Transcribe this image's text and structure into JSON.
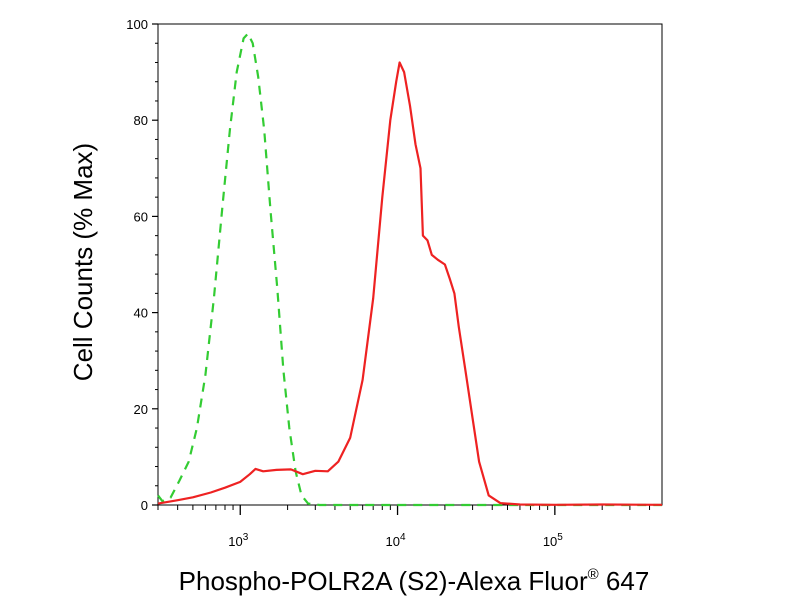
{
  "chart_data": {
    "type": "line",
    "title": "",
    "xlabel": {
      "main": "Phospho-POLR2A (S2)-Alexa Fluor",
      "superscript": "®",
      "suffix": " 647"
    },
    "ylabel": "Cell Counts (% Max)",
    "x_scale": "log",
    "xlim": [
      300,
      480000
    ],
    "ylim": [
      0,
      100
    ],
    "y_ticks": [
      0,
      20,
      40,
      60,
      80,
      100
    ],
    "x_major_ticks": [
      {
        "value": 1000,
        "base": "10",
        "exponent": "3"
      },
      {
        "value": 10000,
        "base": "10",
        "exponent": "4"
      },
      {
        "value": 100000,
        "base": "10",
        "exponent": "5"
      }
    ],
    "grid": false,
    "legend": "none",
    "series": [
      {
        "style": "dashed",
        "color": "#33cc33",
        "points": [
          [
            300,
            2
          ],
          [
            320,
            0.8
          ],
          [
            360,
            1.5
          ],
          [
            410,
            5
          ],
          [
            470,
            9
          ],
          [
            530,
            16
          ],
          [
            600,
            27
          ],
          [
            680,
            43
          ],
          [
            770,
            62
          ],
          [
            860,
            78
          ],
          [
            950,
            90
          ],
          [
            1050,
            97
          ],
          [
            1120,
            98
          ],
          [
            1200,
            96
          ],
          [
            1300,
            89
          ],
          [
            1420,
            78
          ],
          [
            1560,
            61
          ],
          [
            1720,
            45
          ],
          [
            1880,
            28
          ],
          [
            2050,
            16
          ],
          [
            2250,
            7
          ],
          [
            2450,
            2
          ],
          [
            2700,
            0.3
          ],
          [
            3200,
            0
          ],
          [
            480000,
            0
          ]
        ]
      },
      {
        "style": "solid",
        "color": "#ee2222",
        "points": [
          [
            300,
            0.3
          ],
          [
            400,
            1
          ],
          [
            500,
            1.6
          ],
          [
            650,
            2.6
          ],
          [
            800,
            3.6
          ],
          [
            1000,
            4.8
          ],
          [
            1150,
            6.4
          ],
          [
            1250,
            7.5
          ],
          [
            1400,
            7
          ],
          [
            1700,
            7.3
          ],
          [
            2100,
            7.4
          ],
          [
            2500,
            6.4
          ],
          [
            3000,
            7.1
          ],
          [
            3600,
            7
          ],
          [
            4200,
            9
          ],
          [
            5000,
            14
          ],
          [
            6000,
            26
          ],
          [
            7000,
            43
          ],
          [
            8000,
            64
          ],
          [
            9000,
            80
          ],
          [
            9800,
            88
          ],
          [
            10300,
            92
          ],
          [
            11000,
            90
          ],
          [
            12000,
            83
          ],
          [
            13000,
            75
          ],
          [
            14000,
            70
          ],
          [
            14500,
            56
          ],
          [
            15500,
            55
          ],
          [
            16500,
            52
          ],
          [
            18000,
            51
          ],
          [
            20000,
            50
          ],
          [
            21500,
            47
          ],
          [
            23000,
            44
          ],
          [
            24500,
            37
          ],
          [
            27000,
            28
          ],
          [
            30000,
            18
          ],
          [
            33000,
            9
          ],
          [
            38000,
            2
          ],
          [
            45000,
            0.4
          ],
          [
            60000,
            0.1
          ],
          [
            100000,
            0.05
          ],
          [
            200000,
            0.1
          ],
          [
            480000,
            0.05
          ]
        ]
      }
    ]
  }
}
